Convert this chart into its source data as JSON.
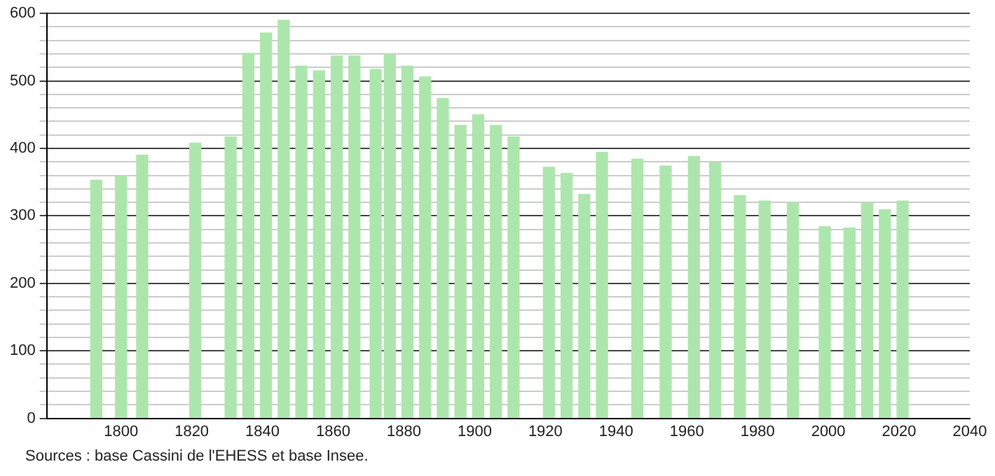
{
  "chart_data": {
    "type": "bar",
    "x": [
      1793,
      1800,
      1806,
      1821,
      1831,
      1836,
      1841,
      1846,
      1851,
      1856,
      1861,
      1866,
      1872,
      1876,
      1881,
      1886,
      1891,
      1896,
      1901,
      1906,
      1911,
      1921,
      1926,
      1931,
      1936,
      1946,
      1954,
      1962,
      1968,
      1975,
      1982,
      1990,
      1999,
      2006,
      2011,
      2016,
      2021
    ],
    "values": [
      353,
      360,
      390,
      408,
      417,
      541,
      571,
      590,
      522,
      515,
      537,
      537,
      517,
      540,
      522,
      506,
      474,
      434,
      450,
      434,
      417,
      372,
      363,
      332,
      394,
      384,
      374,
      388,
      379,
      330,
      322,
      319,
      284,
      282,
      319,
      309,
      322
    ],
    "color": "#ade6ad",
    "xlim": [
      1779,
      2040
    ],
    "xticks": [
      1800,
      1820,
      1840,
      1860,
      1880,
      1900,
      1920,
      1940,
      1960,
      1980,
      2000,
      2020,
      2040
    ],
    "ylim": [
      0,
      600
    ],
    "yticks": [
      0,
      {
        "value": 20,
        "label": null
      },
      {
        "value": 40,
        "label": null
      },
      {
        "value": 60,
        "label": null
      },
      {
        "value": 80,
        "label": null
      },
      100,
      {
        "value": 120,
        "label": null
      },
      {
        "value": 140,
        "label": null
      },
      {
        "value": 160,
        "label": null
      },
      {
        "value": 180,
        "label": null
      },
      200,
      {
        "value": 220,
        "label": null
      },
      {
        "value": 240,
        "label": null
      },
      {
        "value": 260,
        "label": null
      },
      {
        "value": 280,
        "label": null
      },
      300,
      {
        "value": 320,
        "label": null
      },
      {
        "value": 340,
        "label": null
      },
      {
        "value": 360,
        "label": null
      },
      {
        "value": 380,
        "label": null
      },
      400,
      {
        "value": 420,
        "label": null
      },
      {
        "value": 440,
        "label": null
      },
      {
        "value": 460,
        "label": null
      },
      {
        "value": 480,
        "label": null
      },
      500,
      {
        "value": 520,
        "label": null
      },
      {
        "value": 540,
        "label": null
      },
      {
        "value": 560,
        "label": null
      },
      {
        "value": 580,
        "label": null
      },
      600
    ],
    "grid": "y",
    "annotations": [
      "Sources : base Cassini de l'EHESS et base Insee."
    ]
  }
}
